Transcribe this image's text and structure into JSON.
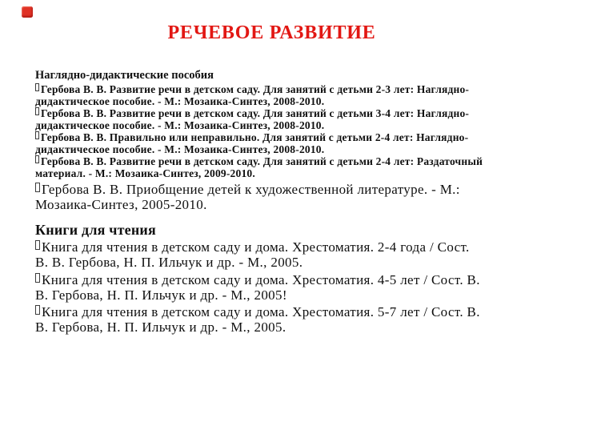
{
  "slide": {
    "title": "РЕЧЕВОЕ РАЗВИТИЕ",
    "title_color": "#e21713",
    "corner_marker_color": "#e03226",
    "background_color": "#ffffff",
    "text_color": "#101010",
    "bullet_glyph": "empty-box-missing-glyph"
  },
  "sections": [
    {
      "heading": "Наглядно-дидактические пособия",
      "items": [
        {
          "lines": [
            "Гербова В. В. Развитие речи в детском саду. Для занятий с детьми 2-3 лет: Наглядно-",
            "дидактическое пособие. - М.: Мозаика-Синтез, 2008-2010."
          ]
        },
        {
          "lines": [
            "Гербова В. В. Развитие речи в детском саду. Для занятий с детьми 3-4 лет: Наглядно-",
            "дидактическое пособие. - М.: Мозаика-Синтез, 2008-2010."
          ]
        },
        {
          "lines": [
            "Гербова В. В. Правильно или неправильно. Для занятий с детьми 2-4 лет: Наглядно-",
            "дидактическое пособие. - М.: Мозаика-Синтез, 2008-2010."
          ]
        },
        {
          "lines": [
            "Гербова В. В. Развитие речи в детском саду. Для занятий с детьми 2-4 лет: Раздаточный",
            "материал. - М.: Мозаика-Синтез, 2009-2010."
          ]
        },
        {
          "lines": [
            "Гербова В. В. Приобщение детей к художественной литературе. - М.:",
            "Мозаика-Синтез, 2005-2010."
          ]
        }
      ]
    },
    {
      "heading": "Книги для чтения",
      "items": [
        {
          "lines": [
            "Книга для чтения в детском саду и дома. Хрестоматия. 2-4 года / Сост.",
            "В. В. Гербова, Н. П. Ильчук и др. - М., 2005."
          ]
        },
        {
          "lines": [
            "Книга для чтения в детском саду и дома. Хрестоматия. 4-5 лет / Сост. В.",
            "В. Гербова, Н. П. Ильчук и др. - М., 2005!"
          ]
        },
        {
          "lines": [
            "Книга для чтения в детском саду и дома. Хрестоматия. 5-7 лет / Сост. В.",
            "В. Гербова, Н. П. Ильчук и др. - М., 2005."
          ]
        }
      ]
    }
  ]
}
